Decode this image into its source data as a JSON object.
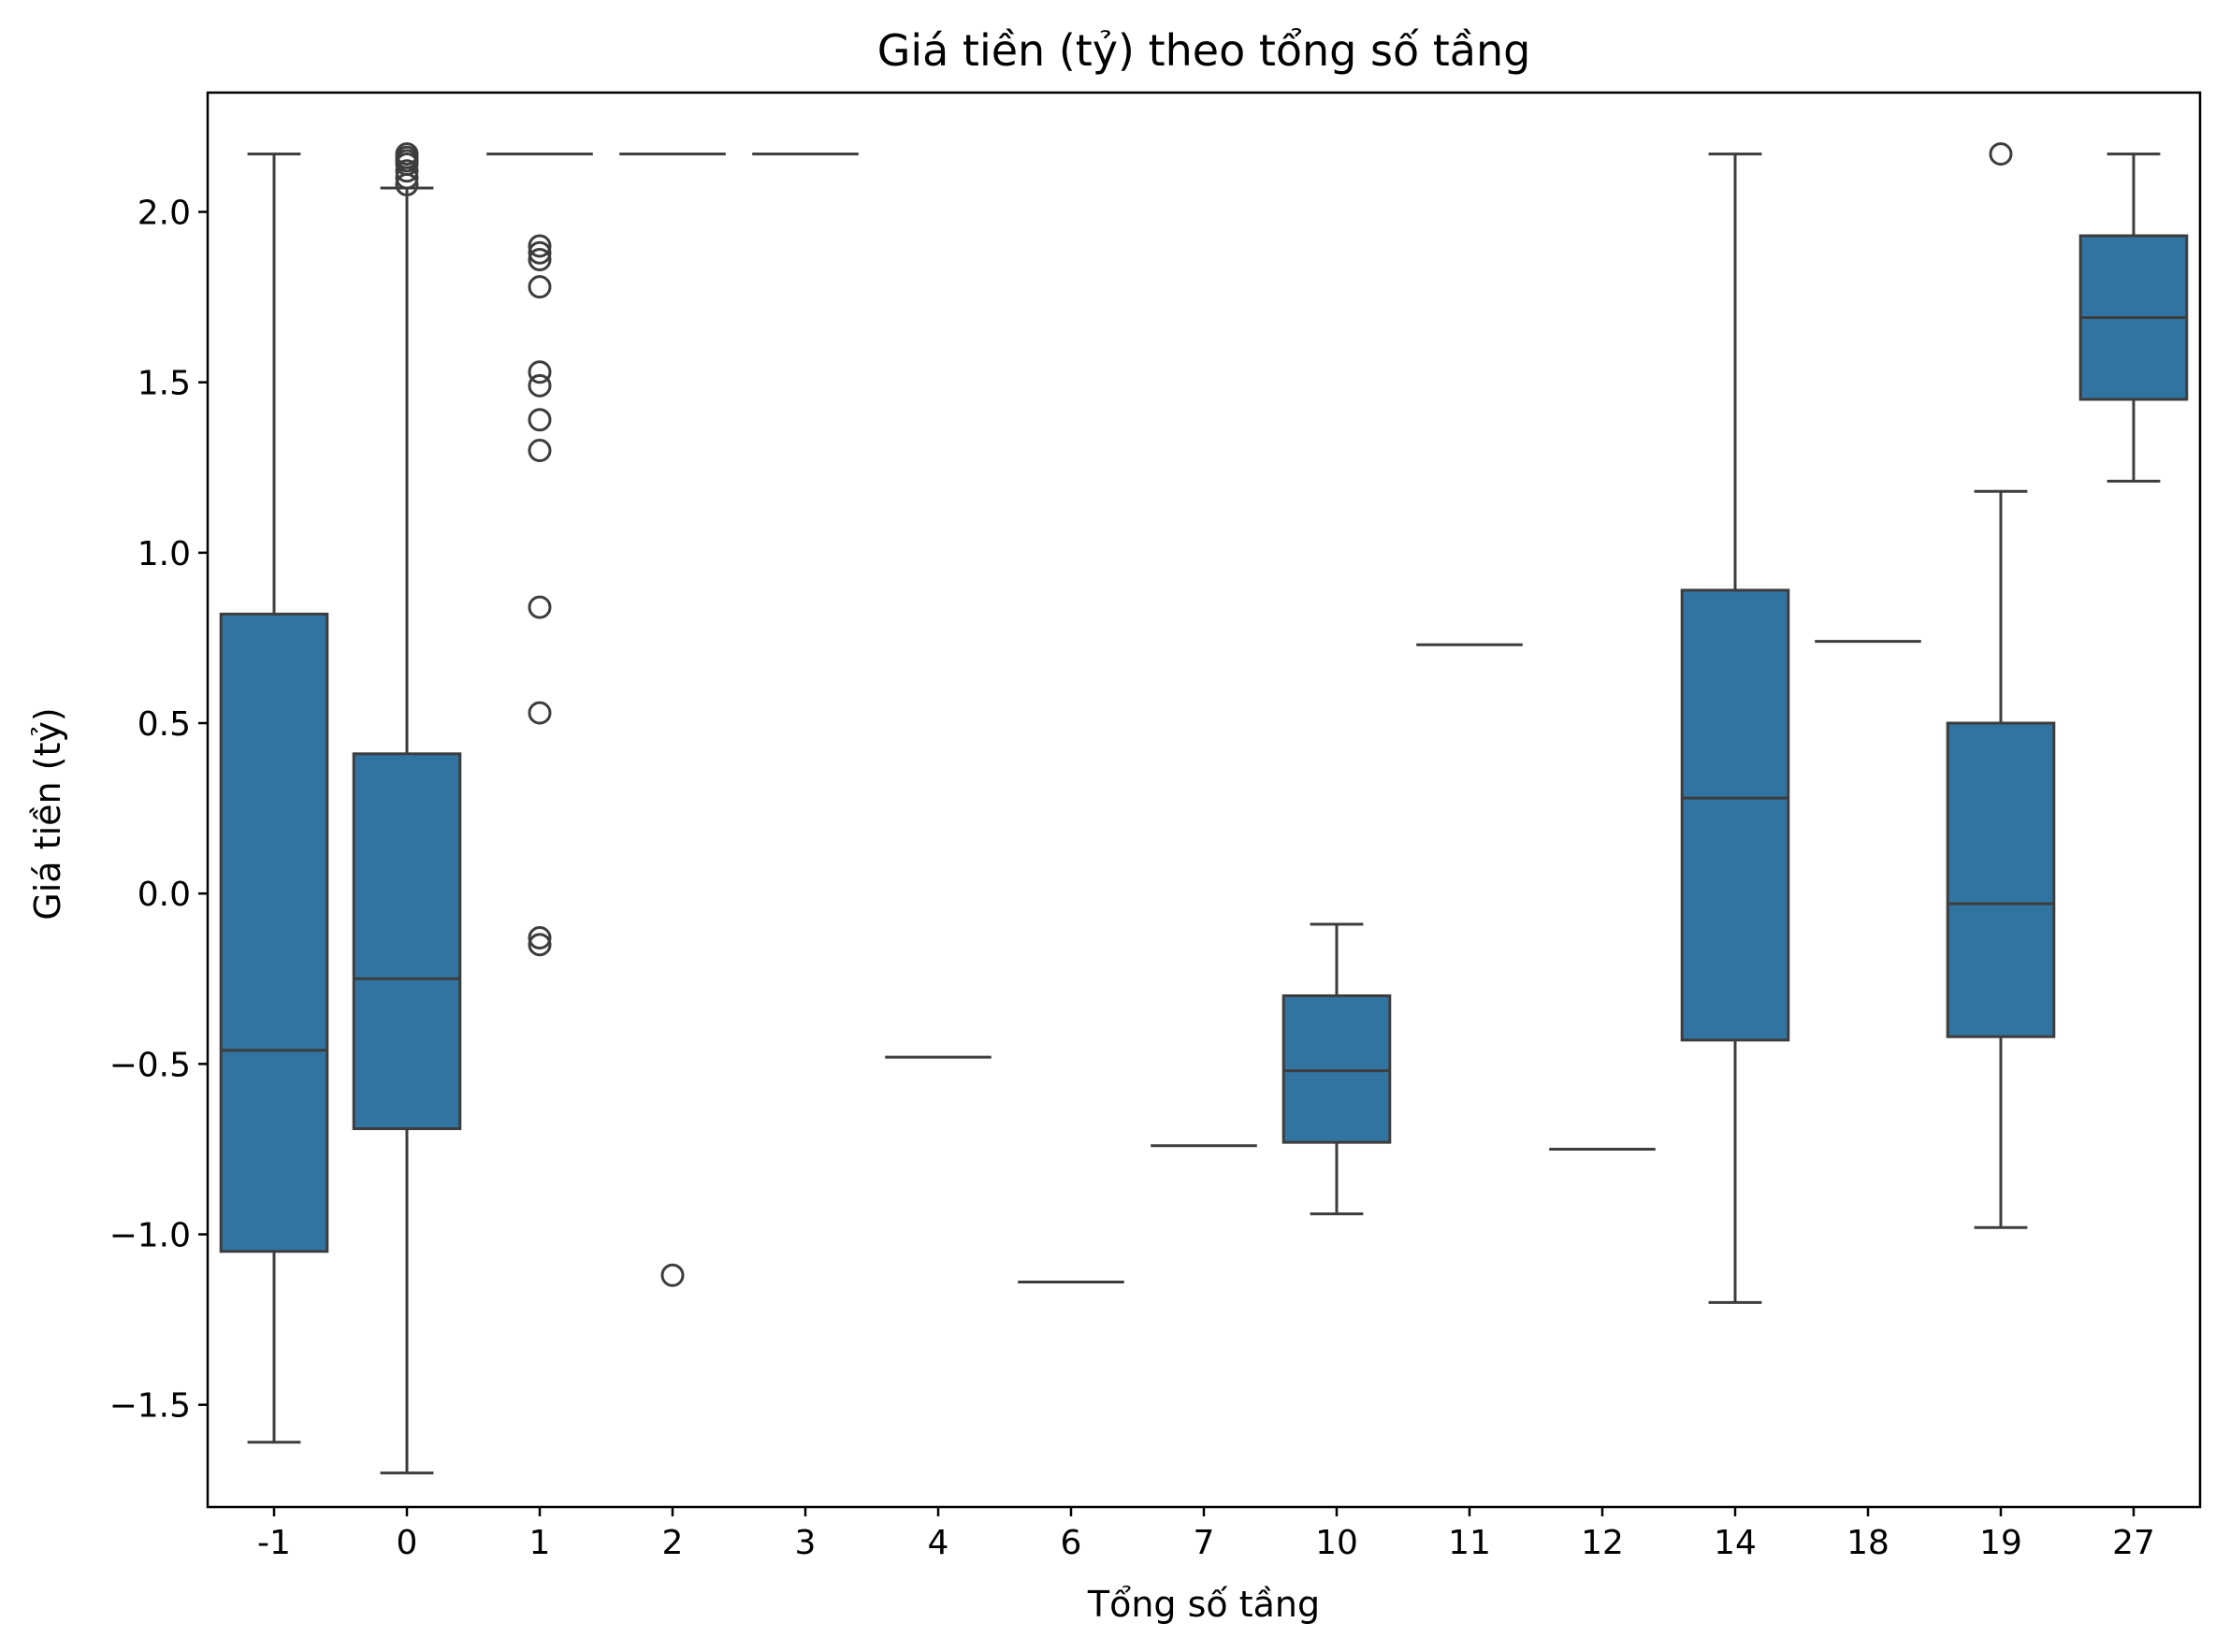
{
  "chart_data": {
    "type": "box",
    "title": "Giá tiền (tỷ) theo tổng số tầng",
    "xlabel": "Tổng số tầng",
    "ylabel": "Giá tiền (tỷ)",
    "ylim": [
      -1.8,
      2.35
    ],
    "yticks": [
      -1.5,
      -1.0,
      -0.5,
      0.0,
      0.5,
      1.0,
      1.5,
      2.0
    ],
    "ytick_labels": [
      "−1.5",
      "−1.0",
      "−0.5",
      "0.0",
      "0.5",
      "1.0",
      "1.5",
      "2.0"
    ],
    "grid": false,
    "box_color": "#3274a1",
    "line_color": "#3d3d3d",
    "categories": [
      "-1",
      "0",
      "1",
      "2",
      "3",
      "4",
      "6",
      "7",
      "10",
      "11",
      "12",
      "14",
      "18",
      "19",
      "27"
    ],
    "boxes": [
      {
        "category": "-1",
        "whislo": -1.61,
        "q1": -1.05,
        "median": -0.46,
        "q3": 0.82,
        "whishi": 2.17,
        "fliers": []
      },
      {
        "category": "0",
        "whislo": -1.7,
        "q1": -0.69,
        "median": -0.25,
        "q3": 0.41,
        "whishi": 2.07,
        "fliers": [
          2.08,
          2.1,
          2.12,
          2.14,
          2.15,
          2.16,
          2.17
        ]
      },
      {
        "category": "1",
        "whislo": 2.17,
        "q1": 2.17,
        "median": 2.17,
        "q3": 2.17,
        "whishi": 2.17,
        "fliers": [
          1.9,
          1.88,
          1.86,
          1.78,
          1.53,
          1.49,
          1.39,
          1.3,
          0.84,
          0.53,
          -0.13,
          -0.15
        ]
      },
      {
        "category": "2",
        "whislo": 2.17,
        "q1": 2.17,
        "median": 2.17,
        "q3": 2.17,
        "whishi": 2.17,
        "fliers": [
          -1.12
        ]
      },
      {
        "category": "3",
        "whislo": 2.17,
        "q1": 2.17,
        "median": 2.17,
        "q3": 2.17,
        "whishi": 2.17,
        "fliers": []
      },
      {
        "category": "4",
        "whislo": -0.48,
        "q1": -0.48,
        "median": -0.48,
        "q3": -0.48,
        "whishi": -0.48,
        "fliers": []
      },
      {
        "category": "6",
        "whislo": -1.14,
        "q1": -1.14,
        "median": -1.14,
        "q3": -1.14,
        "whishi": -1.14,
        "fliers": []
      },
      {
        "category": "7",
        "whislo": -0.74,
        "q1": -0.74,
        "median": -0.74,
        "q3": -0.74,
        "whishi": -0.74,
        "fliers": []
      },
      {
        "category": "10",
        "whislo": -0.94,
        "q1": -0.73,
        "median": -0.52,
        "q3": -0.3,
        "whishi": -0.09,
        "fliers": []
      },
      {
        "category": "11",
        "whislo": 0.73,
        "q1": 0.73,
        "median": 0.73,
        "q3": 0.73,
        "whishi": 0.73,
        "fliers": []
      },
      {
        "category": "12",
        "whislo": -0.75,
        "q1": -0.75,
        "median": -0.75,
        "q3": -0.75,
        "whishi": -0.75,
        "fliers": []
      },
      {
        "category": "14",
        "whislo": -1.2,
        "q1": -0.43,
        "median": 0.28,
        "q3": 0.89,
        "whishi": 2.17,
        "fliers": []
      },
      {
        "category": "18",
        "whislo": 0.74,
        "q1": 0.74,
        "median": 0.74,
        "q3": 0.74,
        "whishi": 0.74,
        "fliers": []
      },
      {
        "category": "19",
        "whislo": -0.98,
        "q1": -0.42,
        "median": -0.03,
        "q3": 0.5,
        "whishi": 1.18,
        "fliers": [
          2.17
        ]
      },
      {
        "category": "27",
        "whislo": 1.21,
        "q1": 1.45,
        "median": 1.69,
        "q3": 1.93,
        "whishi": 2.17,
        "fliers": []
      }
    ]
  }
}
